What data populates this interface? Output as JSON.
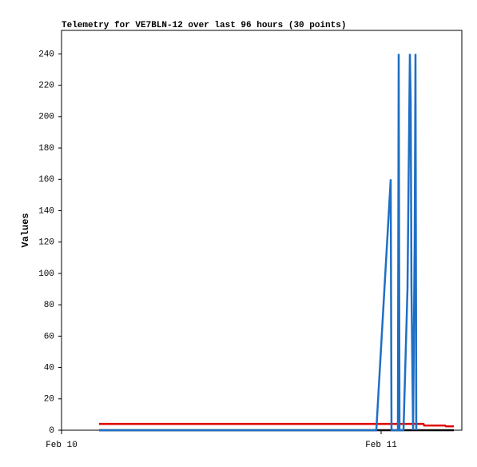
{
  "chart_data": {
    "type": "line",
    "title": "Telemetry for VE7BLN-12 over last 96 hours (30 points)",
    "y_label": "Values",
    "xlim": [
      0,
      30.06
    ],
    "xticks": [
      {
        "value": 0,
        "label": "Feb 10"
      },
      {
        "value": 24,
        "label": "Feb 11"
      }
    ],
    "ylim": [
      0,
      255
    ],
    "yticks": [
      0,
      20,
      40,
      60,
      80,
      100,
      120,
      140,
      160,
      180,
      200,
      220,
      240
    ],
    "grid": false,
    "series": [
      {
        "color": "#1f6fc5",
        "x": [
          2.82,
          23.64,
          24.72,
          24.78,
          25.26,
          25.32,
          25.38,
          25.68,
          25.98,
          26.1,
          26.16,
          26.22,
          26.28,
          26.4,
          26.52,
          26.58,
          26.64
        ],
        "values": [
          0,
          0,
          160,
          0,
          0,
          240,
          0,
          0,
          90,
          190,
          240,
          210,
          90,
          0,
          120,
          240,
          0
        ]
      },
      {
        "color": "#e00000",
        "x": [
          2.82,
          27.18,
          27.24,
          28.8,
          28.86,
          29.46
        ],
        "values": [
          4,
          4,
          3,
          3,
          2.5,
          2.5
        ]
      },
      {
        "color": "#000000",
        "x": [
          2.82,
          29.46
        ],
        "values": [
          0,
          0
        ]
      }
    ]
  }
}
